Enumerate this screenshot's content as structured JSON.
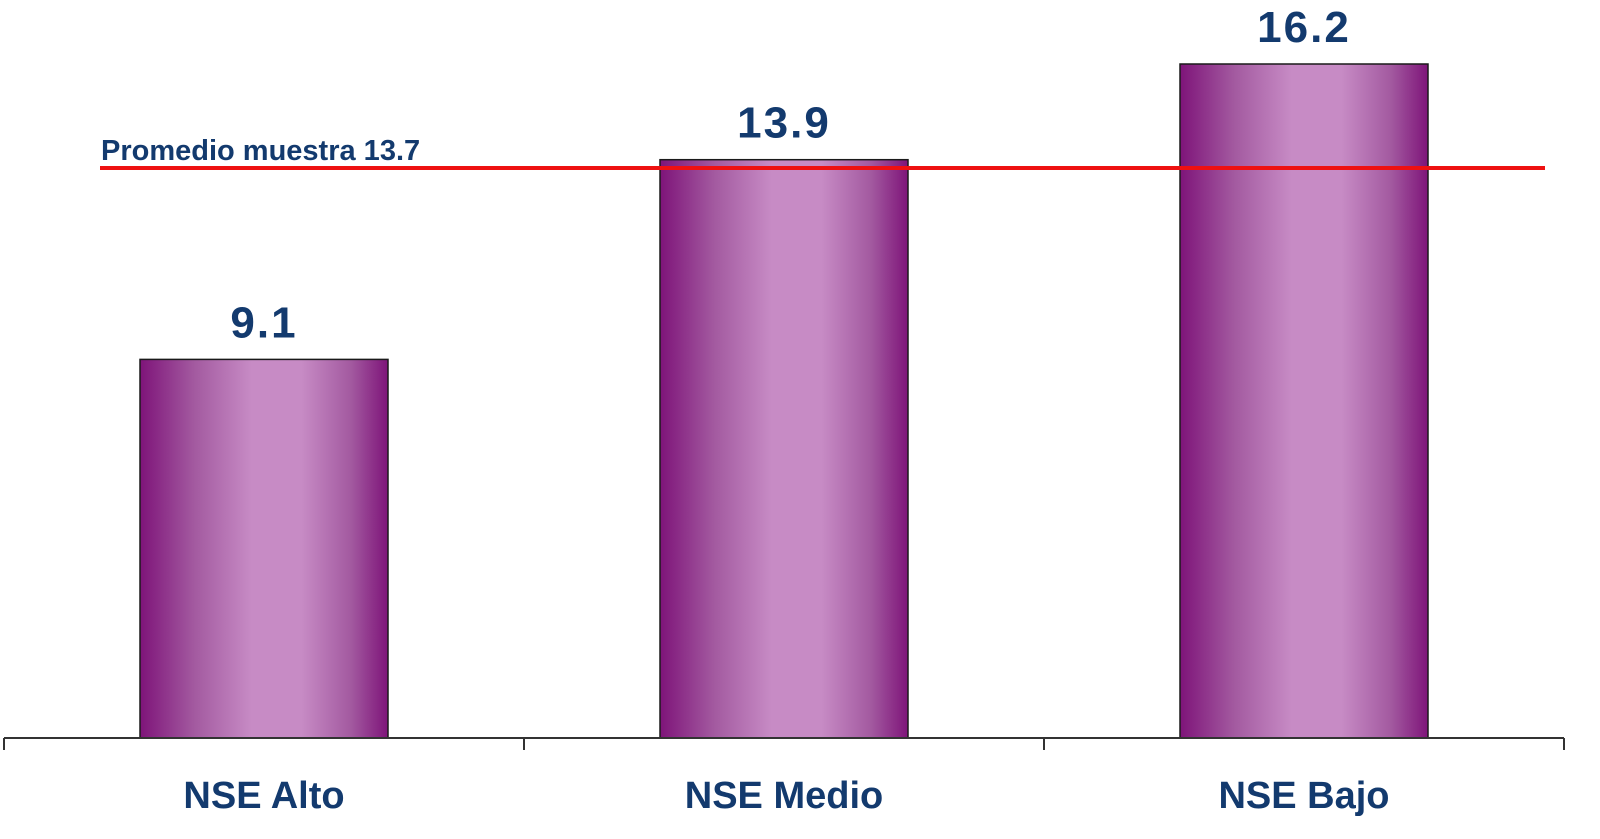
{
  "chart_data": {
    "type": "bar",
    "title": "",
    "xlabel": "",
    "ylabel": "",
    "categories": [
      "NSE Alto",
      "NSE Medio",
      "NSE Bajo"
    ],
    "values": [
      9.1,
      13.9,
      16.2
    ],
    "value_labels": [
      "9.1",
      "13.9",
      "16.2"
    ],
    "ylim": [
      0,
      16.2
    ],
    "grid": false,
    "legend": "none",
    "reference_line": {
      "label": "Promedio muestra 13.7",
      "value": 13.7,
      "color": "#ee1111"
    },
    "colors": {
      "bar_dark": "#7e1479",
      "bar_light": "#c78bc5",
      "bar_outline": "#1a1a1a",
      "label_text": "#133a6e",
      "axis": "#333333"
    }
  }
}
